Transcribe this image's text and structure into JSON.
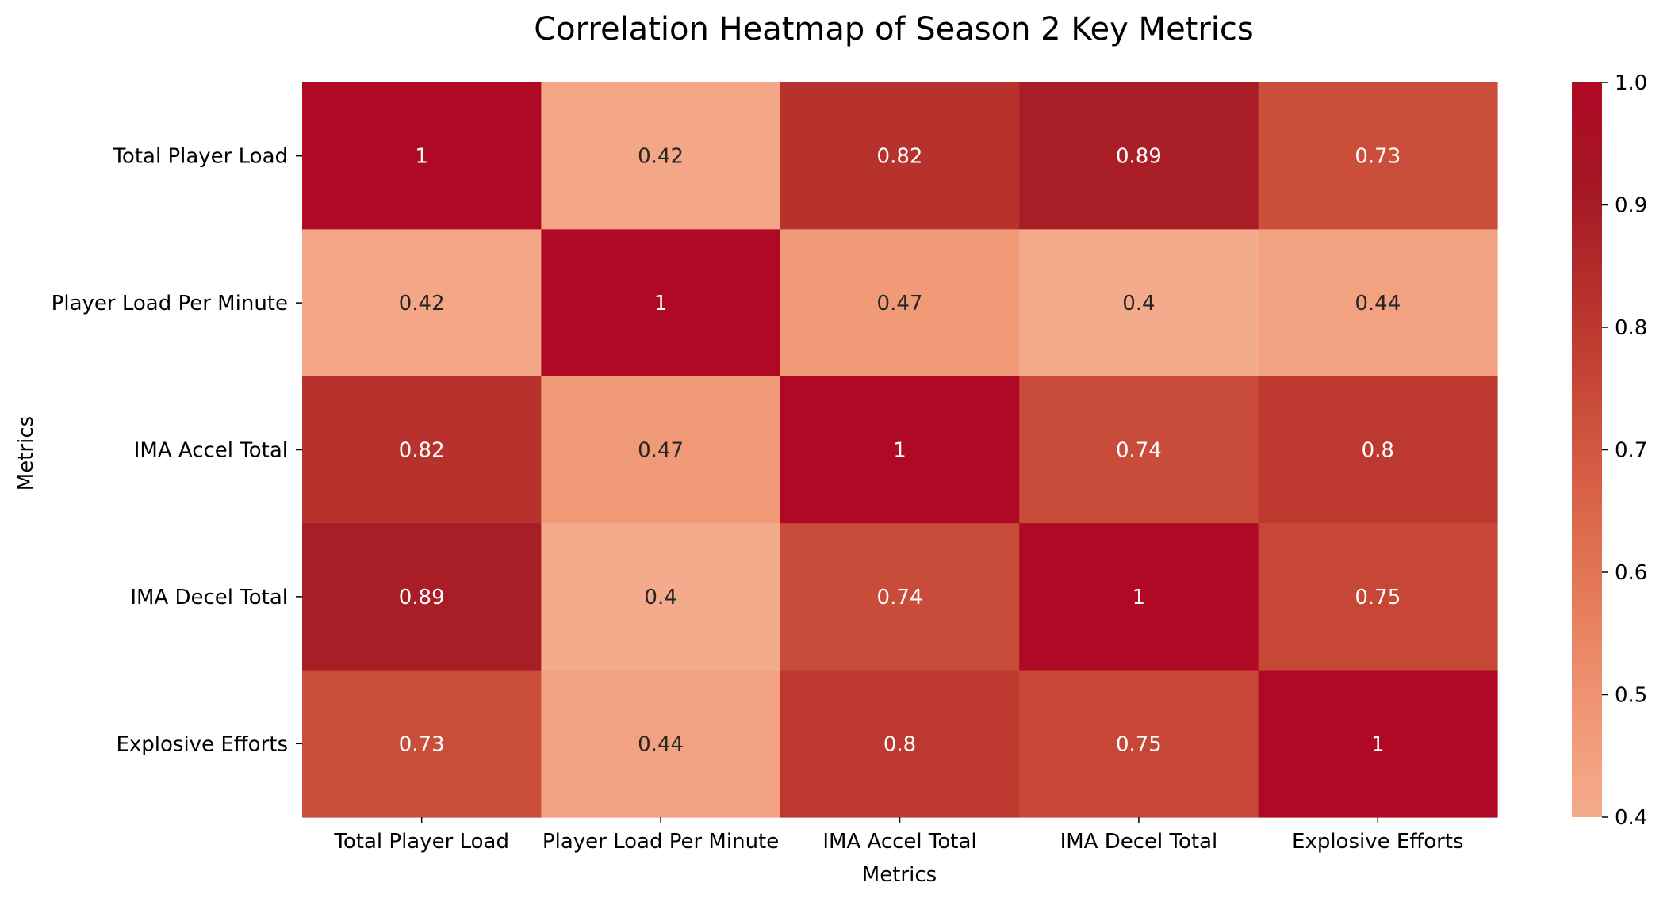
{
  "chart_data": {
    "type": "heatmap",
    "title": "Correlation Heatmap of Season 2 Key Metrics",
    "xlabel": "Metrics",
    "ylabel": "Metrics",
    "x_categories": [
      "Total Player Load",
      "Player Load Per Minute",
      "IMA Accel Total",
      "IMA Decel Total",
      "Explosive Efforts"
    ],
    "y_categories": [
      "Total Player Load",
      "Player Load Per Minute",
      "IMA Accel Total",
      "IMA Decel Total",
      "Explosive Efforts"
    ],
    "values": [
      [
        1,
        0.42,
        0.82,
        0.89,
        0.73
      ],
      [
        0.42,
        1,
        0.47,
        0.4,
        0.44
      ],
      [
        0.82,
        0.47,
        1,
        0.74,
        0.8
      ],
      [
        0.89,
        0.4,
        0.74,
        1,
        0.75
      ],
      [
        0.73,
        0.44,
        0.8,
        0.75,
        1
      ]
    ],
    "cell_labels": [
      [
        "1",
        "0.42",
        "0.82",
        "0.89",
        "0.73"
      ],
      [
        "0.42",
        "1",
        "0.47",
        "0.4",
        "0.44"
      ],
      [
        "0.82",
        "0.47",
        "1",
        "0.74",
        "0.8"
      ],
      [
        "0.89",
        "0.4",
        "0.74",
        "1",
        "0.75"
      ],
      [
        "0.73",
        "0.44",
        "0.8",
        "0.75",
        "1"
      ]
    ],
    "colorbar": {
      "min": 0.4,
      "max": 1.0,
      "ticks": [
        0.4,
        0.5,
        0.6,
        0.7,
        0.8,
        0.9,
        1.0
      ],
      "tick_labels": [
        "0.4",
        "0.5",
        "0.6",
        "0.7",
        "0.8",
        "0.9",
        "1.0"
      ],
      "colormap": "coolwarm (upper half)",
      "low_color": "#f6a789",
      "high_color": "#b40426"
    },
    "grid": false,
    "legend": "colorbar-right"
  }
}
